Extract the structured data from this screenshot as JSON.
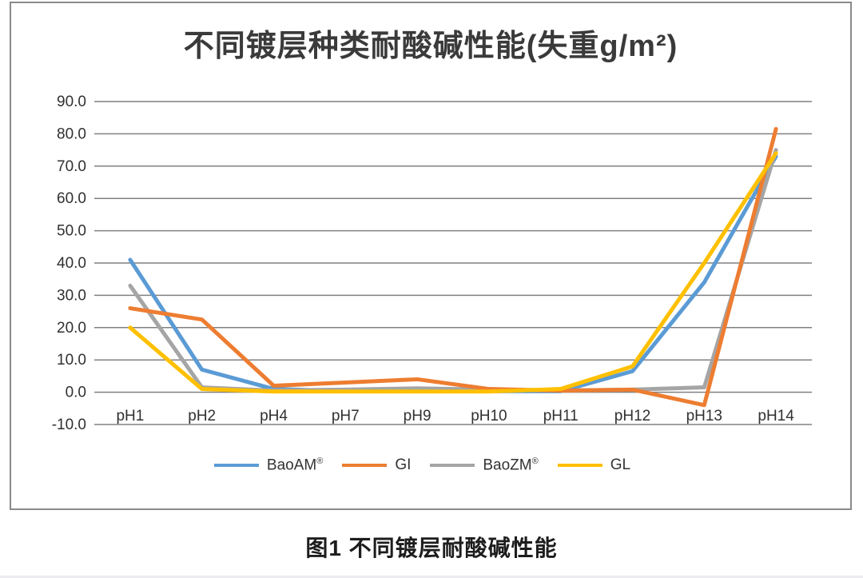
{
  "chart": {
    "title": "不同镀层种类耐酸碱性能(失重g/m²)"
  },
  "caption": "图1 不同镀层耐酸碱性能",
  "colors": {
    "gridline": "#808080",
    "tick_label": "#303030",
    "frame_border": "#8a8a8a"
  },
  "chart_data": {
    "type": "line",
    "title": "不同镀层种类耐酸碱性能(失重g/m²)",
    "categories": [
      "pH1",
      "pH2",
      "pH4",
      "pH7",
      "pH9",
      "pH10",
      "pH11",
      "pH12",
      "pH13",
      "pH14"
    ],
    "series": [
      {
        "name": "BaoAM",
        "sup": "®",
        "color": "#5B9BD5",
        "values": [
          41,
          7,
          1,
          0.3,
          0.3,
          0.3,
          0.3,
          6.5,
          34,
          73
        ]
      },
      {
        "name": "GI",
        "sup": "",
        "color": "#ED7D31",
        "values": [
          26,
          22.5,
          2,
          3,
          4,
          1,
          0.5,
          0.8,
          -4,
          81.5
        ]
      },
      {
        "name": "BaoZM",
        "sup": "®",
        "color": "#A5A5A5",
        "values": [
          33,
          1.5,
          0.5,
          0.8,
          1.2,
          0.8,
          0.5,
          0.8,
          1.5,
          75
        ]
      },
      {
        "name": "GL",
        "sup": "",
        "color": "#FFC000",
        "values": [
          20,
          1,
          0.2,
          0.2,
          0.2,
          0.2,
          1,
          8,
          40,
          74
        ]
      }
    ],
    "xlabel": "",
    "ylabel": "",
    "ylim": [
      -10,
      90
    ],
    "ytick_step": 10,
    "ytick_labels": [
      "90.0",
      "80.0",
      "70.0",
      "60.0",
      "50.0",
      "40.0",
      "30.0",
      "20.0",
      "10.0",
      "0.0",
      "-10.0"
    ],
    "grid": true,
    "legend_position": "bottom"
  }
}
